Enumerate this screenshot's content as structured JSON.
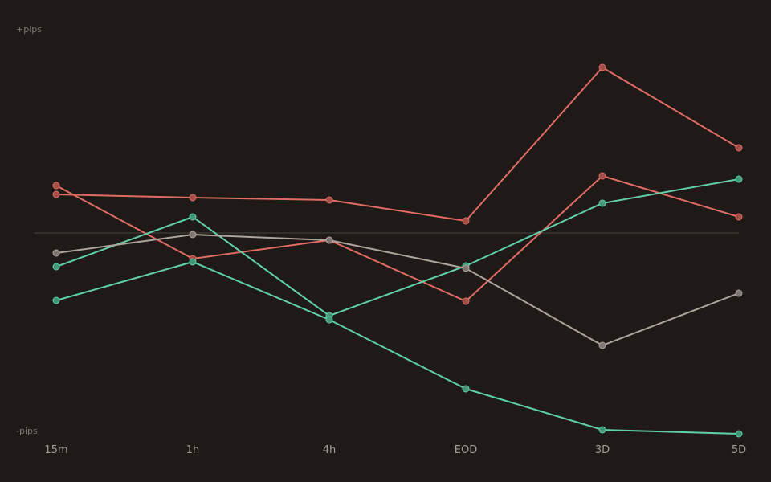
{
  "chart_data": {
    "type": "line",
    "y_top_label": "+pips",
    "y_bottom_label": "-pips",
    "categories": [
      "15m",
      "1h",
      "4h",
      "EOD",
      "3D",
      "5D"
    ],
    "ylim": [
      -250,
      250
    ],
    "zero_line": true,
    "series": [
      {
        "color": "#e06c64",
        "values": [
          48,
          44,
          41,
          15,
          206,
          106
        ]
      },
      {
        "color": "#e06c64",
        "values": [
          59,
          -32,
          -9,
          -85,
          71,
          20
        ]
      },
      {
        "color": "#5fd0a8",
        "values": [
          -42,
          20,
          -103,
          -41,
          37,
          67
        ]
      },
      {
        "color": "#5fd0a8",
        "values": [
          -84,
          -36,
          -108,
          -194,
          -245,
          -250
        ]
      },
      {
        "color": "#aea49b",
        "values": [
          -25,
          -2,
          -9,
          -44,
          -140,
          -75
        ]
      }
    ]
  }
}
